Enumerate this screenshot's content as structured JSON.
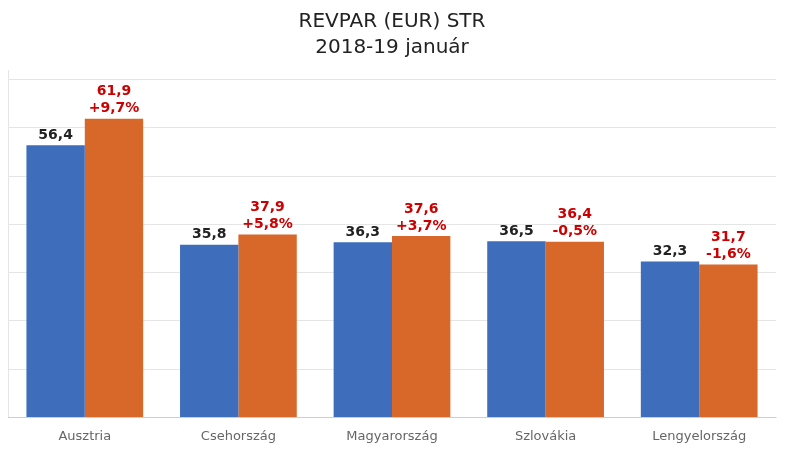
{
  "chart_data": {
    "type": "bar",
    "title": "REVPAR (EUR) STR",
    "subtitle": "2018-19 január",
    "categories": [
      "Ausztria",
      "Csehország",
      "Magyarország",
      "Szlovákia",
      "Lengyelország"
    ],
    "series": [
      {
        "color": "#3d6dbb",
        "values": [
          56.4,
          35.8,
          36.3,
          36.5,
          32.3
        ],
        "value_labels": [
          "56,4",
          "35,8",
          "36,3",
          "36,5",
          "32,3"
        ]
      },
      {
        "color": "#d8672a",
        "values": [
          61.9,
          37.9,
          37.6,
          36.4,
          31.7
        ],
        "value_labels": [
          "61,9",
          "37,9",
          "37,6",
          "36,4",
          "31,7"
        ],
        "pct_changes": [
          9.7,
          5.8,
          3.7,
          -0.5,
          -1.6
        ],
        "pct_change_labels": [
          "+9,7%",
          "+5,8%",
          "+3,7%",
          "-0,5%",
          "-1,6%"
        ]
      }
    ],
    "ylim": [
      0,
      72
    ],
    "yticks": [
      0,
      10,
      20,
      30,
      40,
      50,
      60,
      70
    ],
    "grid": true,
    "tick_labels": "x",
    "data_labels": true
  }
}
